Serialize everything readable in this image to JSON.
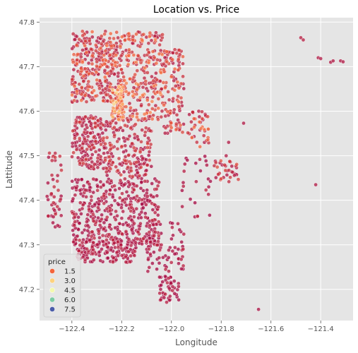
{
  "chart_data": {
    "type": "scatter",
    "title": "Location vs. Price",
    "xlabel": "Longitude",
    "ylabel": "Lattitude",
    "xlim": [
      -122.53,
      -121.27
    ],
    "ylim": [
      47.13,
      47.81
    ],
    "xticks": [
      -122.4,
      -122.2,
      -122.0,
      -121.8,
      -121.6,
      -121.4
    ],
    "xtick_labels": [
      "−122.4",
      "−122.2",
      "−122.0",
      "−121.8",
      "−121.6",
      "−121.4"
    ],
    "yticks": [
      47.2,
      47.3,
      47.4,
      47.5,
      47.6,
      47.7,
      47.8
    ],
    "ytick_labels": [
      "47.2",
      "47.3",
      "47.4",
      "47.5",
      "47.6",
      "47.7",
      "47.8"
    ],
    "grid": true,
    "colors": {
      "background": "#e5e5e5",
      "grid": "#ffffff",
      "point_edge": "#ffffff"
    },
    "legend": {
      "title": "price",
      "placement": "bottom-left",
      "entries": [
        {
          "label": "1.5",
          "color": "#f4643b"
        },
        {
          "label": "3.0",
          "color": "#fdd27f"
        },
        {
          "label": "4.5",
          "color": "#f3f9ae"
        },
        {
          "label": "6.0",
          "color": "#7ccba3"
        },
        {
          "label": "7.5",
          "color": "#4a5ca9"
        }
      ]
    },
    "price_colorscale": [
      {
        "price": 0.0,
        "color": "#9e0142"
      },
      {
        "price": 1.5,
        "color": "#f4643b"
      },
      {
        "price": 3.0,
        "color": "#fdd27f"
      },
      {
        "price": 4.5,
        "color": "#f3f9ae"
      },
      {
        "price": 6.0,
        "color": "#7ccba3"
      },
      {
        "price": 7.5,
        "color": "#4a5ca9"
      }
    ],
    "regions": [
      {
        "x": [
          -122.4,
          -122.23
        ],
        "y": [
          47.62,
          47.78
        ],
        "price": [
          0.3,
          1.6
        ],
        "count": 300
      },
      {
        "x": [
          -122.23,
          -122.03
        ],
        "y": [
          47.58,
          47.78
        ],
        "price": [
          0.4,
          2.0
        ],
        "count": 300
      },
      {
        "x": [
          -122.24,
          -122.19
        ],
        "y": [
          47.58,
          47.66
        ],
        "price": [
          1.0,
          3.2
        ],
        "count": 80
      },
      {
        "x": [
          -122.03,
          -121.95
        ],
        "y": [
          47.55,
          47.74
        ],
        "price": [
          0.3,
          1.5
        ],
        "count": 110
      },
      {
        "x": [
          -121.94,
          -121.85
        ],
        "y": [
          47.52,
          47.6
        ],
        "price": [
          0.3,
          1.8
        ],
        "count": 40
      },
      {
        "x": [
          -122.4,
          -122.28
        ],
        "y": [
          47.47,
          47.59
        ],
        "price": [
          0.2,
          0.9
        ],
        "count": 170
      },
      {
        "x": [
          -122.28,
          -122.08
        ],
        "y": [
          47.45,
          47.58
        ],
        "price": [
          0.2,
          1.0
        ],
        "count": 200
      },
      {
        "x": [
          -122.4,
          -122.05
        ],
        "y": [
          47.3,
          47.45
        ],
        "price": [
          0.1,
          0.6
        ],
        "count": 420
      },
      {
        "x": [
          -122.38,
          -122.14
        ],
        "y": [
          47.26,
          47.31
        ],
        "price": [
          0.1,
          0.5
        ],
        "count": 140
      },
      {
        "x": [
          -122.1,
          -121.95
        ],
        "y": [
          47.24,
          47.35
        ],
        "price": [
          0.1,
          0.5
        ],
        "count": 80
      },
      {
        "x": [
          -122.05,
          -121.97
        ],
        "y": [
          47.17,
          47.23
        ],
        "price": [
          0.1,
          0.5
        ],
        "count": 45
      },
      {
        "x": [
          -122.5,
          -122.44
        ],
        "y": [
          47.33,
          47.51
        ],
        "price": [
          0.2,
          0.8
        ],
        "count": 45
      },
      {
        "x": [
          -121.83,
          -121.73
        ],
        "y": [
          47.44,
          47.49
        ],
        "price": [
          0.2,
          1.2
        ],
        "count": 35
      },
      {
        "x": [
          -121.96,
          -121.84
        ],
        "y": [
          47.36,
          47.5
        ],
        "price": [
          0.1,
          0.6
        ],
        "count": 25
      }
    ],
    "points": [
      {
        "x": -121.48,
        "y": 47.765,
        "price": 0.4
      },
      {
        "x": -121.47,
        "y": 47.76,
        "price": 0.4
      },
      {
        "x": -121.41,
        "y": 47.72,
        "price": 0.3
      },
      {
        "x": -121.4,
        "y": 47.718,
        "price": 0.3
      },
      {
        "x": -121.36,
        "y": 47.71,
        "price": 0.3
      },
      {
        "x": -121.35,
        "y": 47.713,
        "price": 0.3
      },
      {
        "x": -121.32,
        "y": 47.713,
        "price": 0.3
      },
      {
        "x": -121.31,
        "y": 47.711,
        "price": 0.3
      },
      {
        "x": -121.42,
        "y": 47.435,
        "price": 0.3
      },
      {
        "x": -121.65,
        "y": 47.155,
        "price": 0.2
      },
      {
        "x": -121.71,
        "y": 47.573,
        "price": 0.3
      },
      {
        "x": -121.77,
        "y": 47.53,
        "price": 0.3
      },
      {
        "x": -121.78,
        "y": 47.5,
        "price": 0.3
      },
      {
        "x": -121.85,
        "y": 47.43,
        "price": 0.2
      },
      {
        "x": -121.89,
        "y": 47.6,
        "price": 0.4
      }
    ]
  }
}
